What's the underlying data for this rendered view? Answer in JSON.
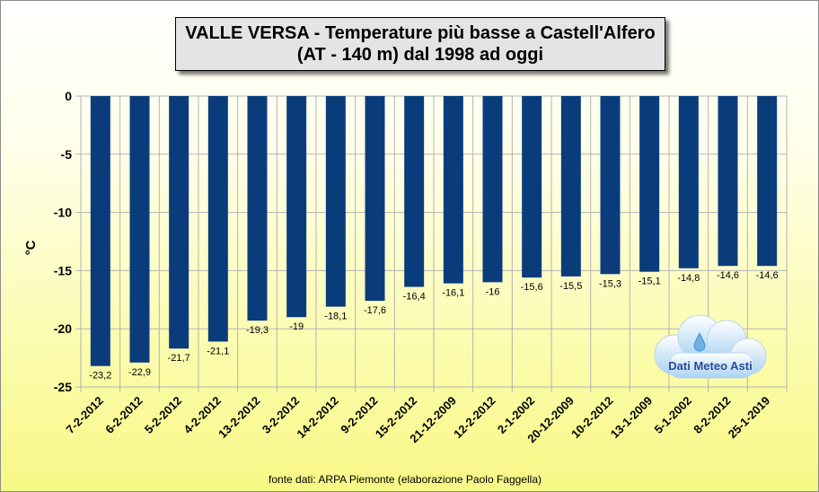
{
  "title_line1": "VALLE VERSA - Temperature più basse a Castell'Alfero",
  "title_line2": "(AT - 140 m) dal 1998 ad oggi",
  "source": "fonte dati: ARPA Piemonte (elaborazione Paolo Faggella)",
  "logo_text": "Dati Meteo Asti",
  "colors": {
    "bar": "#0a3c7c",
    "grid": "#b3b3b3",
    "background_top": "#ffffff",
    "background_bottom": "#f8f886"
  },
  "chart_data": {
    "type": "bar",
    "ylabel": "°C",
    "ylim": [
      -25,
      0
    ],
    "yticks": [
      0,
      -5,
      -10,
      -15,
      -20,
      -25
    ],
    "grid": true,
    "categories": [
      "7-2-2012",
      "6-2-2012",
      "5-2-2012",
      "4-2-2012",
      "13-2-2012",
      "3-2-2012",
      "14-2-2012",
      "9-2-2012",
      "15-2-2012",
      "21-12-2009",
      "12-2-2012",
      "2-1-2002",
      "20-12-2009",
      "10-2-2012",
      "13-1-2009",
      "5-1-2002",
      "8-2-2012",
      "25-1-2019"
    ],
    "values": [
      -23.2,
      -22.9,
      -21.7,
      -21.1,
      -19.3,
      -19,
      -18.1,
      -17.6,
      -16.4,
      -16.1,
      -16,
      -15.6,
      -15.5,
      -15.3,
      -15.1,
      -14.8,
      -14.6,
      -14.6
    ],
    "data_labels": [
      "-23,2",
      "-22,9",
      "-21,7",
      "-21,1",
      "-19,3",
      "-19",
      "-18,1",
      "-17,6",
      "-16,4",
      "-16,1",
      "-16",
      "-15,6",
      "-15,5",
      "-15,3",
      "-15,1",
      "-14,8",
      "-14,6",
      "-14,6"
    ]
  }
}
